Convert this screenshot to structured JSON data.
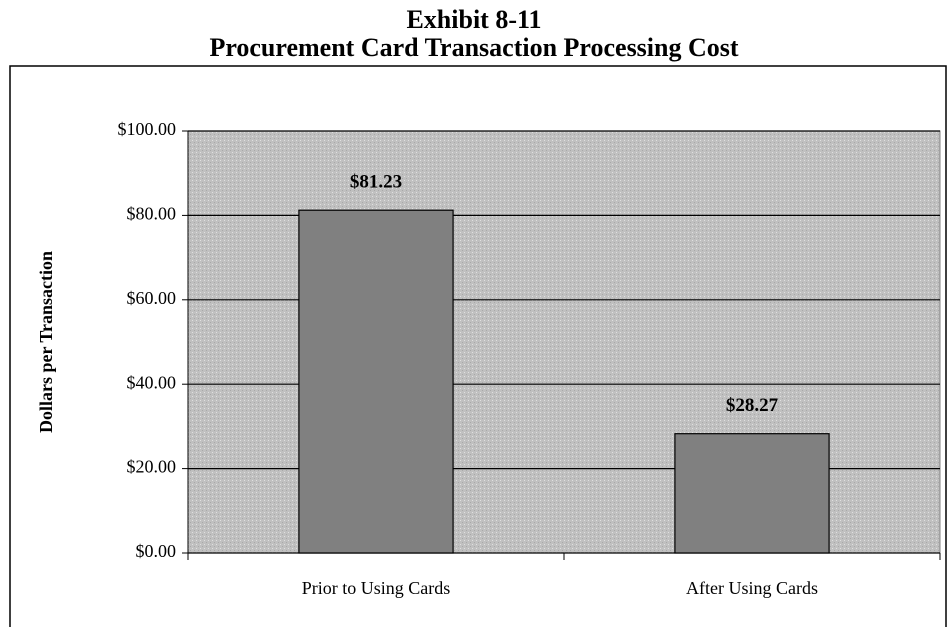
{
  "chart_data": {
    "type": "bar",
    "title": "Exhibit 8-11",
    "subtitle": "Procurement Card Transaction Processing Cost",
    "y_label": "Dollars per Transaction",
    "categories": [
      "Prior to Using Cards",
      "After Using Cards"
    ],
    "values": [
      81.23,
      28.27
    ],
    "value_labels": [
      "$81.23",
      "$28.27"
    ],
    "color": "#808080",
    "ylim": [
      0,
      100
    ],
    "yticks": [
      {
        "value": 0,
        "label": "$0.00"
      },
      {
        "value": 20,
        "label": "$20.00"
      },
      {
        "value": 40,
        "label": "$40.00"
      },
      {
        "value": 60,
        "label": "$60.00"
      },
      {
        "value": 80,
        "label": "$80.00"
      },
      {
        "value": 100,
        "label": "$100.00"
      }
    ],
    "grid": true
  }
}
